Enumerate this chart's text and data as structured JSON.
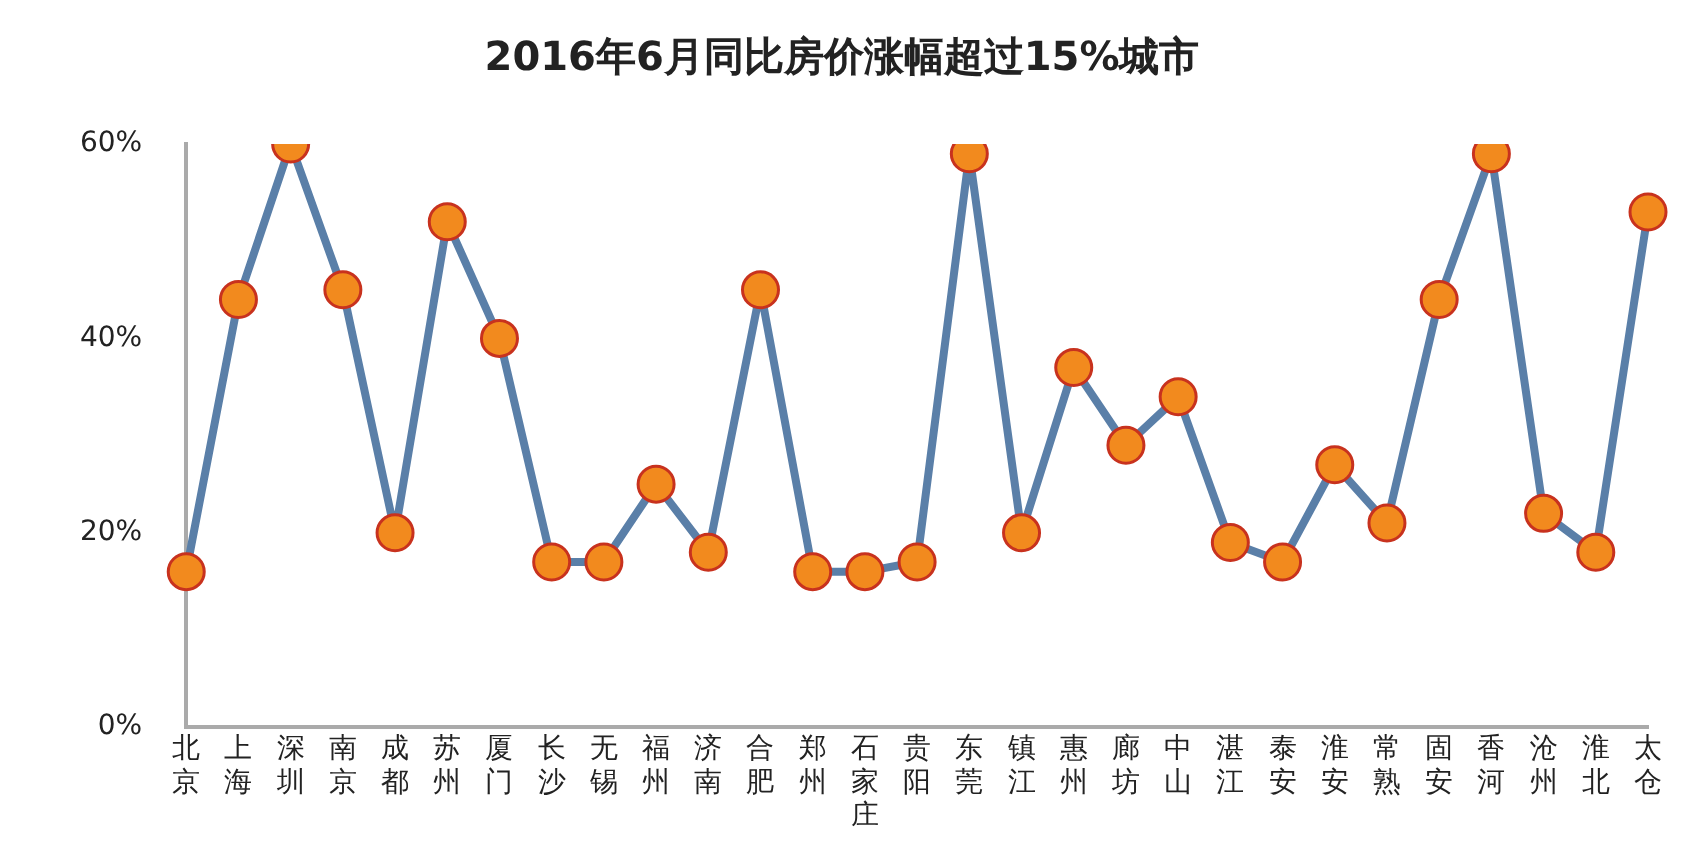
{
  "chart_data": {
    "type": "line",
    "title": "2016年6月同比房价涨幅超过15%城市",
    "categories": [
      "北京",
      "上海",
      "深圳",
      "南京",
      "成都",
      "苏州",
      "厦门",
      "长沙",
      "无锡",
      "福州",
      "济南",
      "合肥",
      "郑州",
      "石家庄",
      "贵阳",
      "东莞",
      "镇江",
      "惠州",
      "廊坊",
      "中山",
      "湛江",
      "泰安",
      "淮安",
      "常熟",
      "固安",
      "香河",
      "沧州",
      "淮北",
      "太仓"
    ],
    "series": [
      {
        "color": "#5a7fa8",
        "values": [
          16,
          44,
          60,
          45,
          20,
          52,
          40,
          17,
          17,
          25,
          18,
          45,
          16,
          16,
          17,
          59,
          20,
          37,
          29,
          34,
          19,
          17,
          27,
          21,
          44,
          59,
          22,
          18,
          53
        ]
      }
    ],
    "ylim": [
      0,
      60
    ],
    "yticks": [
      {
        "value": 0,
        "label": "0%"
      },
      {
        "value": 20,
        "label": "20%"
      },
      {
        "value": 40,
        "label": "40%"
      },
      {
        "value": 60,
        "label": "60%"
      }
    ],
    "grid": false,
    "legend": false,
    "marker": "circle",
    "line_style": "solid"
  }
}
